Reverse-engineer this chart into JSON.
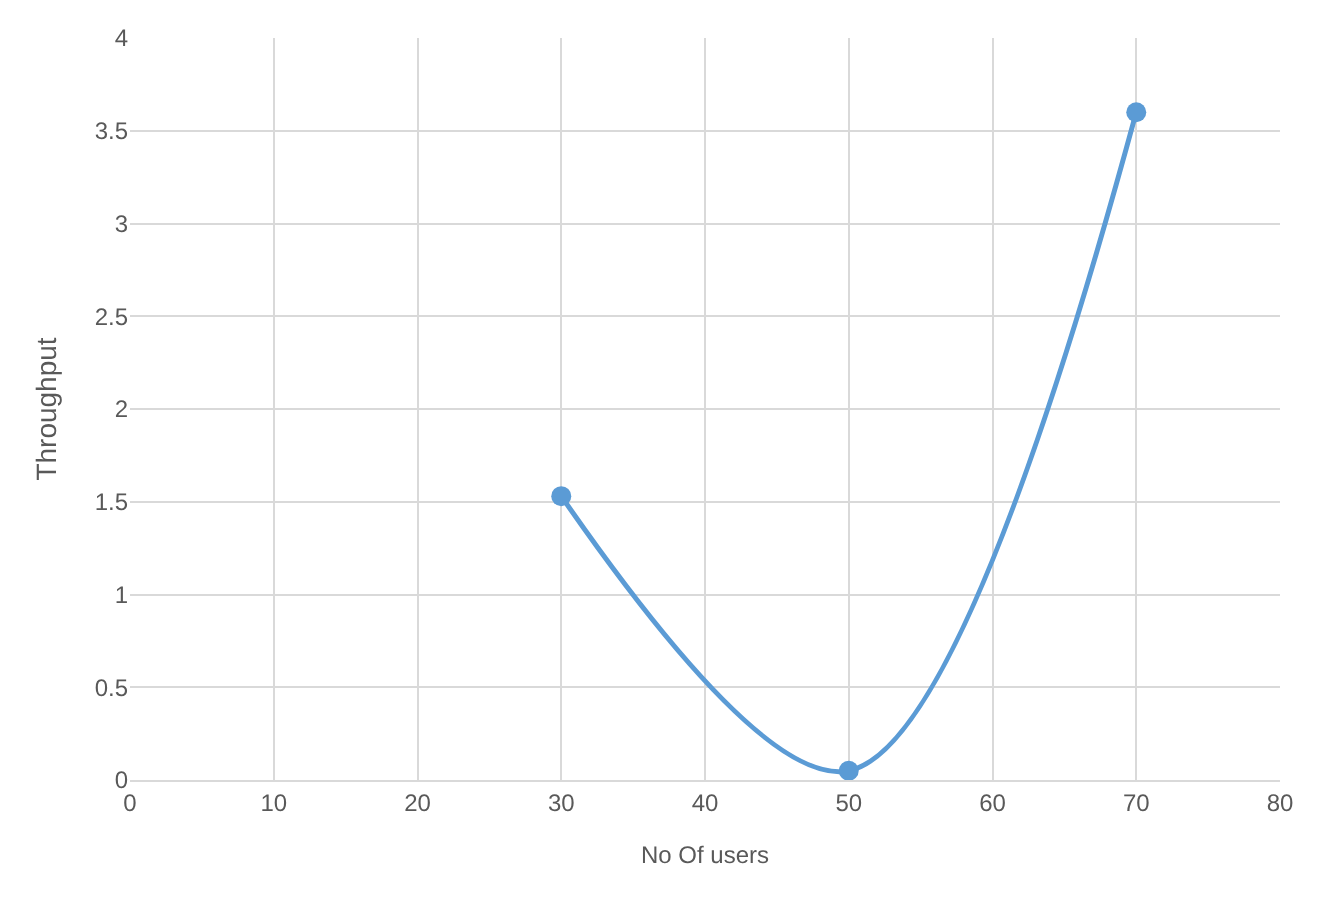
{
  "chart_data": {
    "type": "line",
    "xlabel": "No Of users",
    "ylabel": "Throughput",
    "x": [
      30,
      50,
      70
    ],
    "series": [
      {
        "color": "#5b9bd5",
        "values": [
          1.53,
          0.05,
          3.6
        ]
      }
    ],
    "xlim": [
      0,
      80
    ],
    "xticks": [
      0,
      10,
      20,
      30,
      40,
      50,
      60,
      70,
      80
    ],
    "ylim": [
      0,
      4
    ],
    "yticks": [
      0,
      0.5,
      1,
      1.5,
      2,
      2.5,
      3,
      3.5,
      4
    ],
    "grid": true,
    "marker": "circle",
    "line_style": "solid"
  }
}
